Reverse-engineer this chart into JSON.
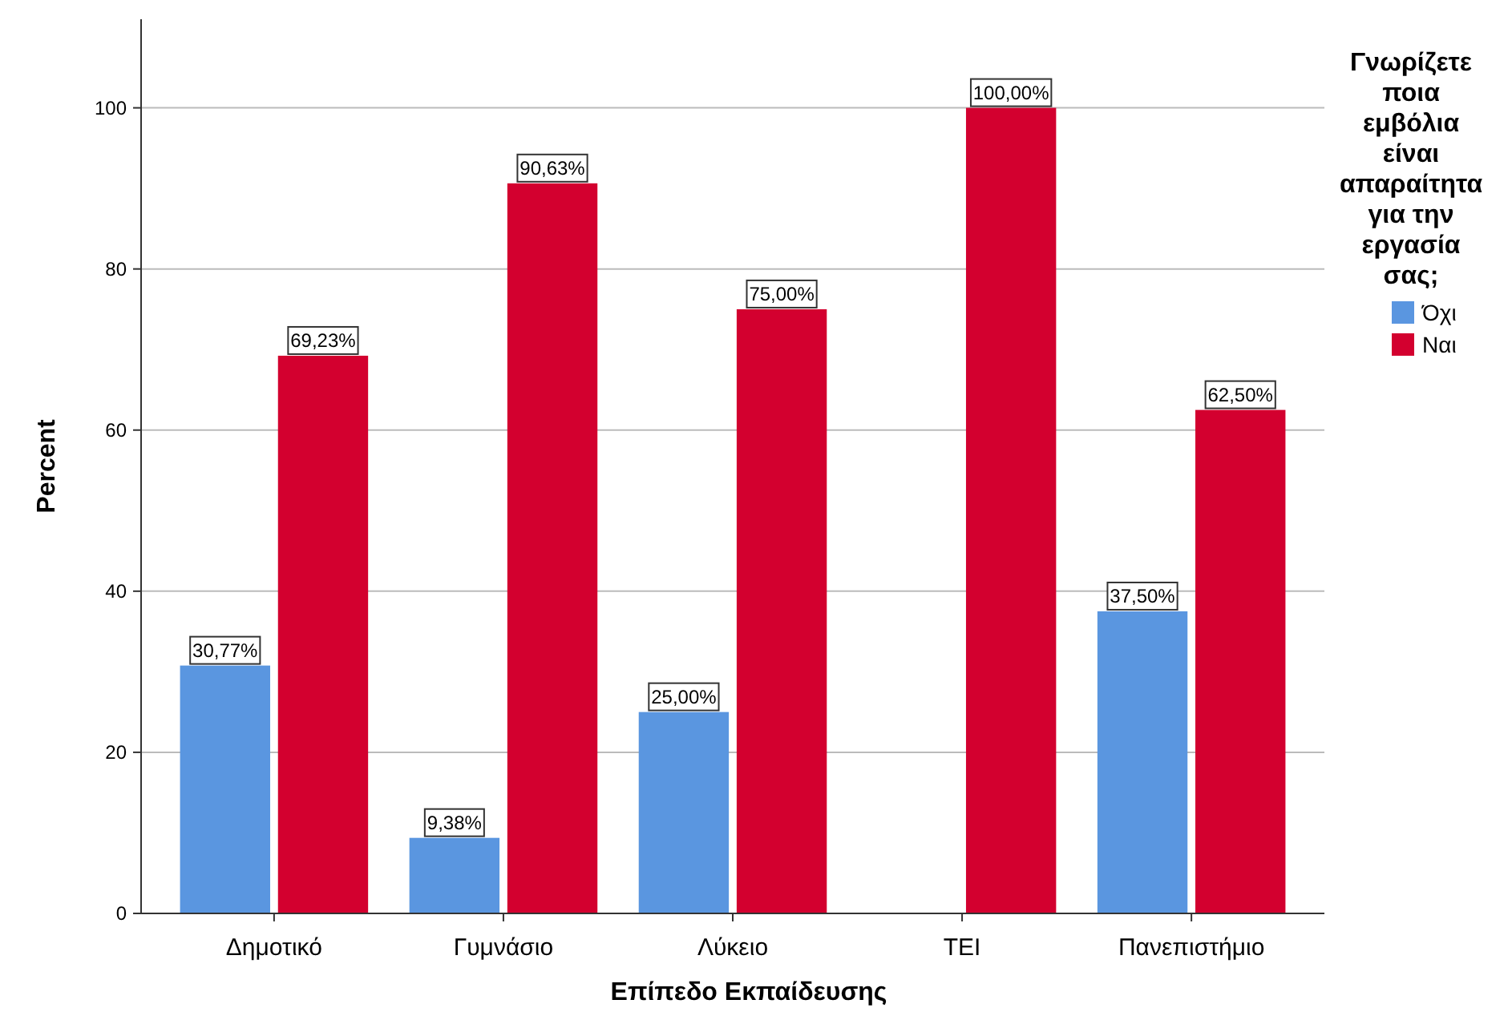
{
  "chart_data": {
    "type": "bar",
    "xlabel": "Επίπεδο Εκπαίδευσης",
    "ylabel": "Percent",
    "legend_title": "Γνωρίζετε ποια εμβόλια είναι απαραίτητα για την εργασία σας;",
    "categories": [
      "Δημοτικό",
      "Γυμνάσιο",
      "Λύκειο",
      "ΤΕΙ",
      "Πανεπιστήμιο"
    ],
    "series": [
      {
        "name": "Όχι",
        "color": "#5a96e0",
        "values": [
          30.77,
          9.38,
          25.0,
          null,
          37.5
        ],
        "value_labels": [
          "30,77%",
          "9,38%",
          "25,00%",
          null,
          "37,50%"
        ]
      },
      {
        "name": "Ναι",
        "color": "#d3002f",
        "values": [
          69.23,
          90.63,
          75.0,
          100.0,
          62.5
        ],
        "value_labels": [
          "69,23%",
          "90,63%",
          "75,00%",
          "100,00%",
          "62,50%"
        ]
      }
    ],
    "ylim": [
      0,
      111
    ],
    "yticks": [
      0,
      20,
      40,
      60,
      80,
      100
    ],
    "grid": "y",
    "legend": "right"
  }
}
